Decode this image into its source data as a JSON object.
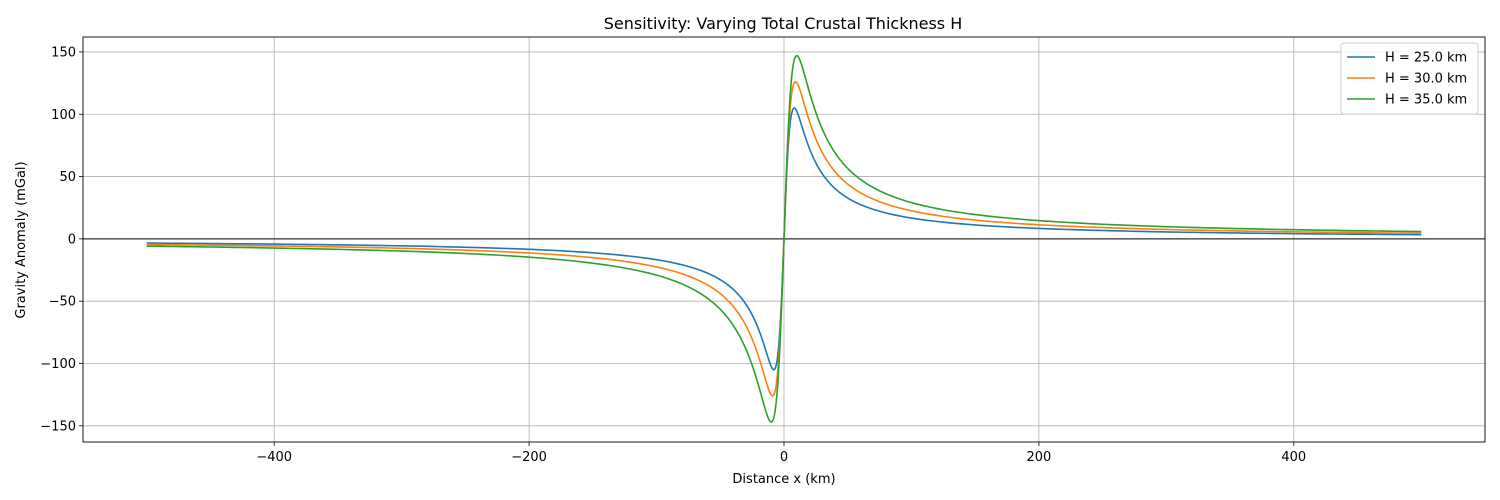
{
  "chart_data": {
    "type": "line",
    "title": "Sensitivity: Varying Total Crustal Thickness H",
    "xlabel": "Distance x (km)",
    "ylabel": "Gravity Anomaly (mGal)",
    "xlim": [
      -550,
      550
    ],
    "ylim": [
      -163,
      162
    ],
    "xticks": [
      -400,
      -200,
      0,
      200,
      400
    ],
    "yticks": [
      -150,
      -100,
      -50,
      0,
      50,
      100,
      150
    ],
    "xtick_labels": [
      "−400",
      "−200",
      "0",
      "200",
      "400"
    ],
    "ytick_labels": [
      "−150",
      "−100",
      "−50",
      "0",
      "50",
      "100",
      "150"
    ],
    "grid": true,
    "zero_line": true,
    "legend_position": "top-right",
    "series": [
      {
        "name": "H = 25.0 km",
        "color": "#1f77b4",
        "peak": 105,
        "peak_x": 8,
        "points": [
          [
            -500,
            -4
          ],
          [
            -400,
            -5
          ],
          [
            -300,
            -6
          ],
          [
            -200,
            -9
          ],
          [
            -100,
            -21
          ],
          [
            -50,
            -44
          ],
          [
            -25,
            -75
          ],
          [
            -8,
            -104
          ],
          [
            -3,
            -50
          ],
          [
            0,
            0
          ],
          [
            3,
            50
          ],
          [
            8,
            105
          ],
          [
            25,
            75
          ],
          [
            50,
            33
          ],
          [
            100,
            18
          ],
          [
            200,
            10
          ],
          [
            300,
            7
          ],
          [
            400,
            5
          ],
          [
            500,
            4
          ]
        ]
      },
      {
        "name": "H = 30.0 km",
        "color": "#ff7f0e",
        "peak": 126,
        "peak_x": 9,
        "points": [
          [
            -500,
            -5
          ],
          [
            -400,
            -6
          ],
          [
            -300,
            -8
          ],
          [
            -200,
            -13
          ],
          [
            -100,
            -27
          ],
          [
            -50,
            -55
          ],
          [
            -25,
            -95
          ],
          [
            -9,
            -126
          ],
          [
            -3,
            -60
          ],
          [
            0,
            0
          ],
          [
            3,
            60
          ],
          [
            9,
            126
          ],
          [
            25,
            100
          ],
          [
            50,
            48
          ],
          [
            100,
            26
          ],
          [
            200,
            13
          ],
          [
            300,
            9
          ],
          [
            400,
            6
          ],
          [
            500,
            5
          ]
        ]
      },
      {
        "name": "H = 35.0 km",
        "color": "#2ca02c",
        "peak": 147,
        "peak_x": 10,
        "points": [
          [
            -500,
            -7
          ],
          [
            -400,
            -9
          ],
          [
            -300,
            -12
          ],
          [
            -200,
            -18
          ],
          [
            -100,
            -36
          ],
          [
            -50,
            -70
          ],
          [
            -25,
            -115
          ],
          [
            -10,
            -147
          ],
          [
            -4,
            -70
          ],
          [
            0,
            0
          ],
          [
            4,
            70
          ],
          [
            10,
            147
          ],
          [
            25,
            118
          ],
          [
            50,
            65
          ],
          [
            100,
            34
          ],
          [
            200,
            18
          ],
          [
            300,
            12
          ],
          [
            400,
            9
          ],
          [
            500,
            7
          ]
        ]
      }
    ]
  }
}
